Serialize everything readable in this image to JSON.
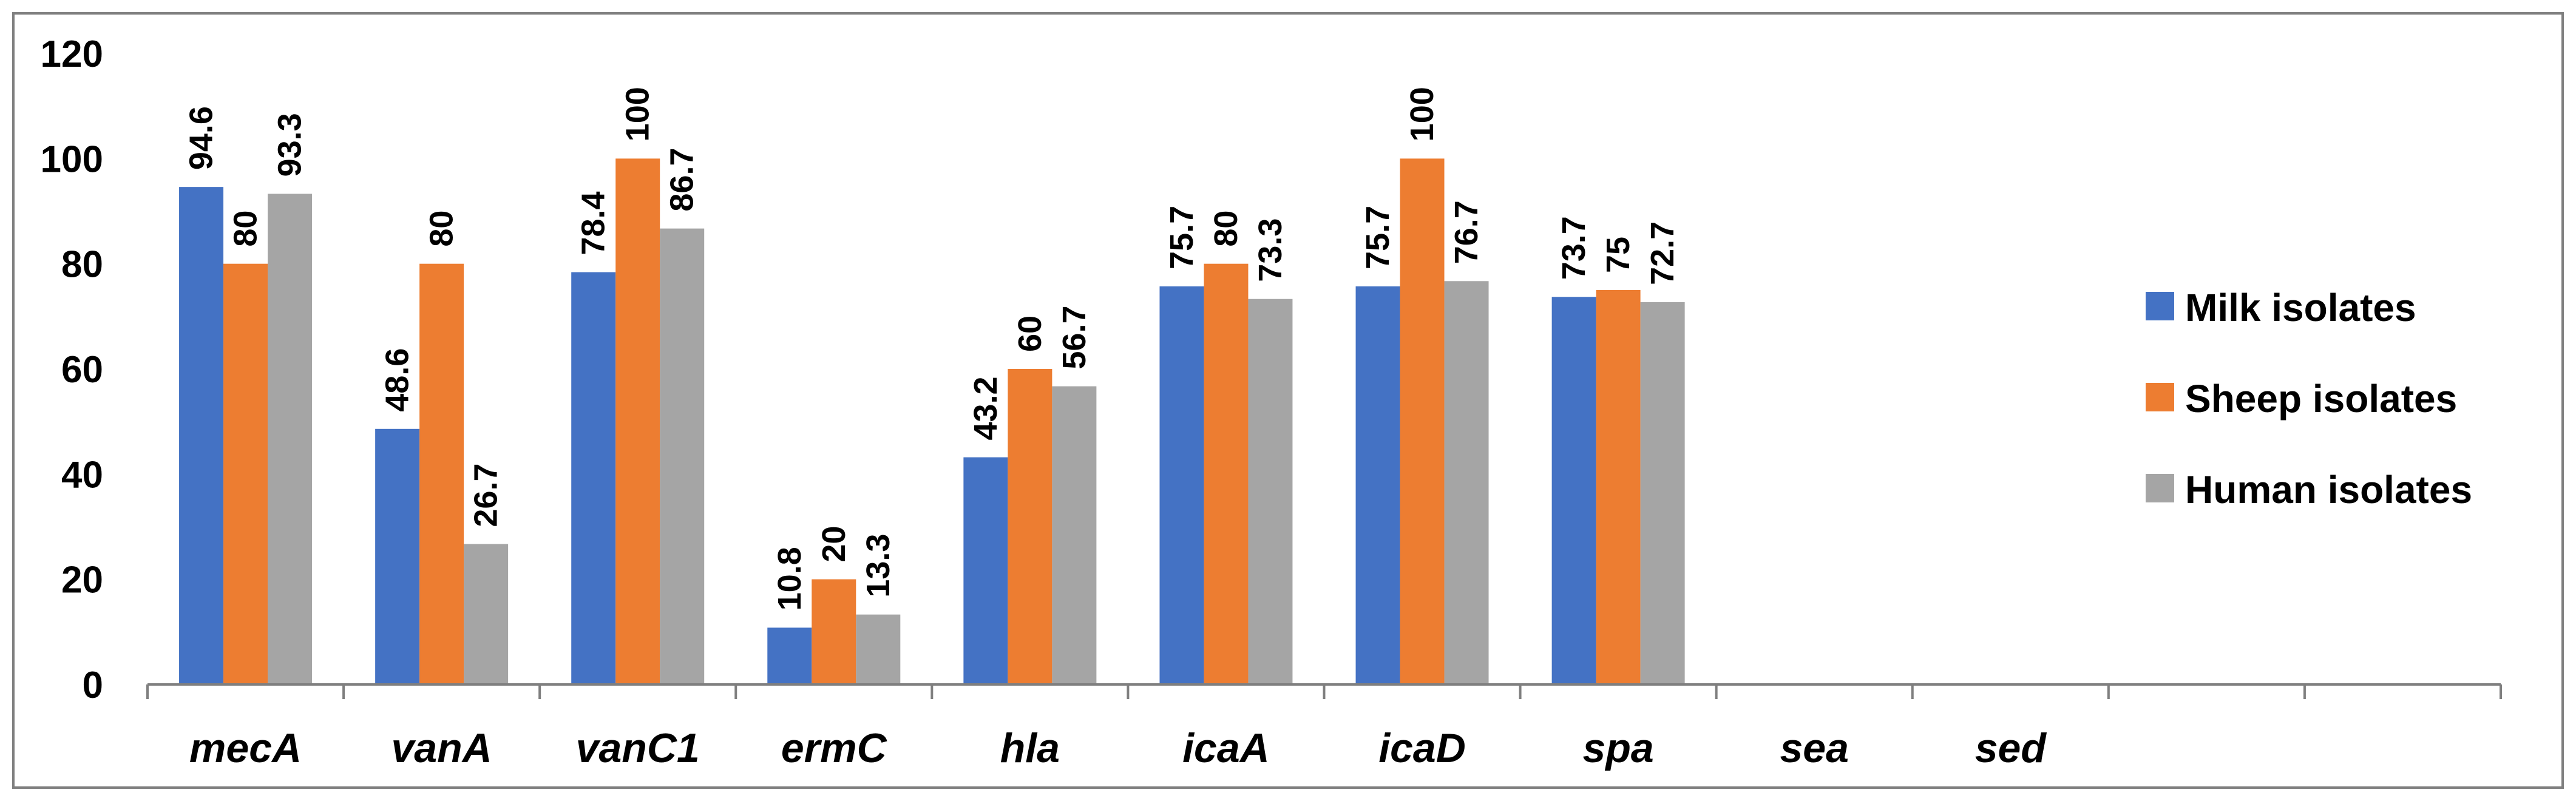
{
  "chart_data": {
    "type": "bar",
    "title": "",
    "xlabel": "",
    "ylabel": "",
    "categories": [
      "mecA",
      "vanA",
      "vanC1",
      "ermC",
      "hla",
      "icaA",
      "icaD",
      "spa",
      "sea",
      "sed",
      "",
      ""
    ],
    "series": [
      {
        "name": "Milk isolates",
        "color": "#4472C4",
        "values": [
          94.6,
          48.6,
          78.4,
          10.8,
          43.2,
          75.7,
          75.7,
          73.7,
          null,
          null,
          null,
          null
        ],
        "labels": [
          "94.6",
          "48.6",
          "78.4",
          "10.8",
          "43.2",
          "75.7",
          "75.7",
          "73.7",
          null,
          null,
          null,
          null
        ]
      },
      {
        "name": "Sheep isolates",
        "color": "#ED7D31",
        "values": [
          80,
          80,
          100,
          20,
          60,
          80,
          100,
          75,
          null,
          null,
          null,
          null
        ],
        "labels": [
          "80",
          "80",
          "100",
          "20",
          "60",
          "80",
          "100",
          "75",
          null,
          null,
          null,
          null
        ]
      },
      {
        "name": "Human isolates",
        "color": "#A5A5A5",
        "values": [
          93.3,
          26.7,
          86.7,
          13.3,
          56.7,
          73.3,
          76.7,
          72.7,
          null,
          null,
          null,
          null
        ],
        "labels": [
          "93.3",
          "26.7",
          "86.7",
          "13.3",
          "56.7",
          "73.3",
          "76.7",
          "72.7",
          null,
          null,
          null,
          null
        ]
      }
    ],
    "ylim": [
      0,
      120
    ],
    "yticks": [
      "0",
      "20",
      "40",
      "60",
      "80",
      "100",
      "120"
    ],
    "grid": false,
    "legend_position": "right"
  }
}
